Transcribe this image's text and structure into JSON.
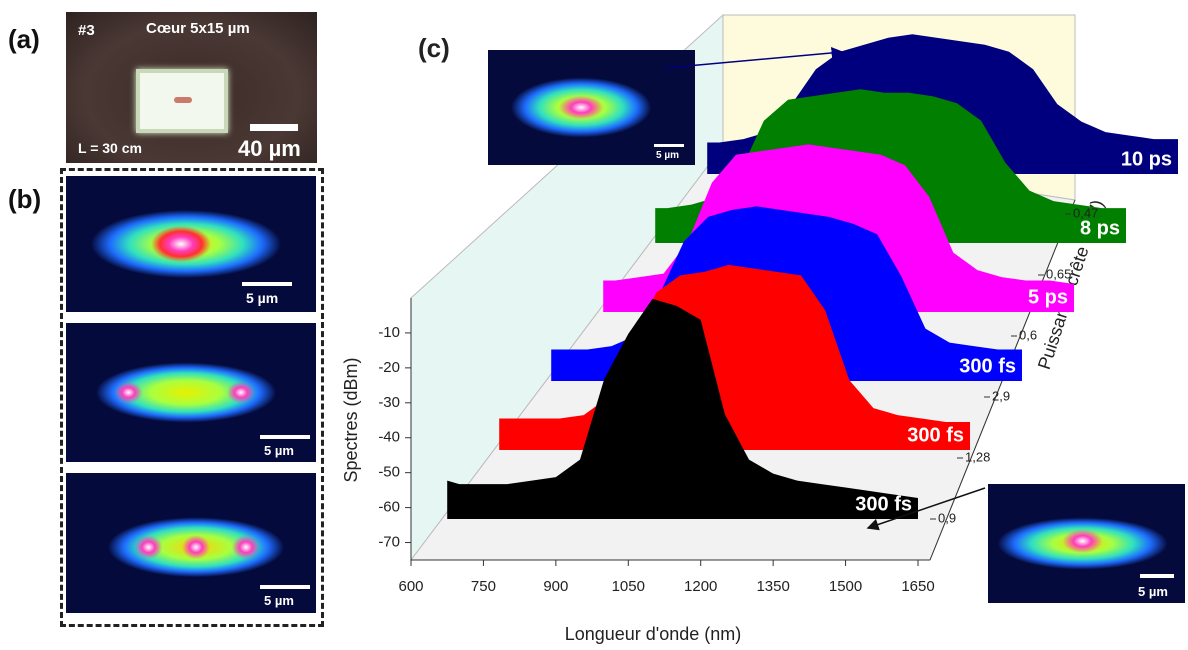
{
  "panel_a": {
    "label": "(a)",
    "sample": "#3",
    "core": "Cœur 5x15 µm",
    "length": "L = 30 cm",
    "scale": "40 µm"
  },
  "panel_b": {
    "label": "(b)",
    "scales": [
      "5 µm",
      "5 µm",
      "5 µm"
    ]
  },
  "chart_data": {
    "type": "area",
    "panel_label": "(c)",
    "x_label": "Longueur d'onde (nm)",
    "y_label": "Spectres (dBm)",
    "z_label": "Puissance crête (MW)",
    "xlim": [
      600,
      1650
    ],
    "xticks": [
      600,
      750,
      900,
      1050,
      1200,
      1350,
      1500,
      1650
    ],
    "ylim": [
      -75,
      0
    ],
    "yticks": [
      -70,
      -60,
      -50,
      -40,
      -30,
      -20,
      -10
    ],
    "z_categories": [
      "0,9",
      "1,28",
      "2,9",
      "0,6",
      "0,65",
      "0,47"
    ],
    "x": [
      675,
      700,
      750,
      800,
      850,
      900,
      950,
      1000,
      1050,
      1100,
      1150,
      1200,
      1250,
      1300,
      1350,
      1400,
      1450,
      1500,
      1550,
      1600,
      1650
    ],
    "series": [
      {
        "name": "300 fs",
        "color": "#000000",
        "values": [
          -64,
          -65,
          -65,
          -65,
          -64,
          -63,
          -58,
          -35,
          -22,
          -12,
          -14,
          -18,
          -45,
          -58,
          -62,
          -64,
          -65,
          -66,
          -67,
          -68,
          -69
        ]
      },
      {
        "name": "300 fs",
        "color": "#ff0000",
        "values": [
          -66,
          -66,
          -66,
          -66,
          -65,
          -60,
          -45,
          -30,
          -25,
          -24,
          -22,
          -23,
          -24,
          -25,
          -35,
          -55,
          -63,
          -65,
          -66,
          -67,
          -67
        ]
      },
      {
        "name": "300 fs",
        "color": "#0000ff",
        "values": [
          -66,
          -66,
          -66,
          -65,
          -62,
          -50,
          -35,
          -28,
          -26,
          -25,
          -26,
          -27,
          -28,
          -30,
          -33,
          -45,
          -60,
          -64,
          -65,
          -66,
          -66
        ]
      },
      {
        "name": "5 ps",
        "color": "#ff00ff",
        "values": [
          -66,
          -66,
          -65,
          -64,
          -55,
          -38,
          -30,
          -29,
          -28,
          -27,
          -28,
          -29,
          -30,
          -33,
          -42,
          -58,
          -63,
          -65,
          -66,
          -66,
          -67
        ]
      },
      {
        "name": "8 ps",
        "color": "#007f00",
        "values": [
          -65,
          -65,
          -64,
          -62,
          -55,
          -40,
          -34,
          -33,
          -32,
          -31,
          -32,
          -32,
          -33,
          -35,
          -40,
          -52,
          -60,
          -63,
          -64,
          -65,
          -65
        ]
      },
      {
        "name": "10 ps",
        "color": "#00007f",
        "values": [
          -66,
          -66,
          -65,
          -63,
          -55,
          -45,
          -40,
          -38,
          -36,
          -35,
          -36,
          -37,
          -38,
          -40,
          -45,
          -55,
          -60,
          -63,
          -64,
          -65,
          -65
        ]
      }
    ],
    "inset_scales": [
      "5 µm",
      "5 µm"
    ]
  }
}
